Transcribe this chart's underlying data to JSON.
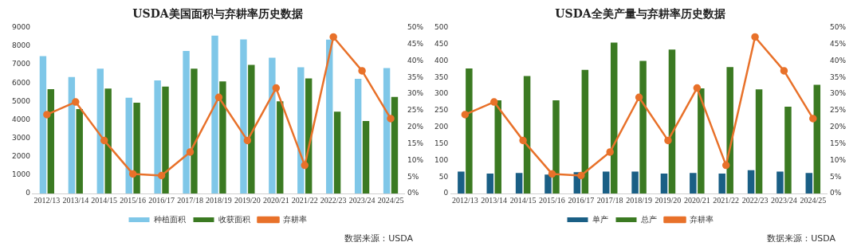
{
  "chart_data": [
    {
      "type": "bar",
      "title": "USDA美国面积与弃耕率历史数据",
      "categories": [
        "2012/13",
        "2013/14",
        "2014/15",
        "2015/16",
        "2016/17",
        "2017/18",
        "2018/19",
        "2019/20",
        "2020/21",
        "2021/22",
        "2022/23",
        "2023/24",
        "2024/25"
      ],
      "series": [
        {
          "name": "种植面积",
          "color": "#7fc7e8",
          "values": [
            7460,
            6320,
            6780,
            5200,
            6140,
            7740,
            8570,
            8360,
            7370,
            6850,
            8350,
            6230,
            6810
          ]
        },
        {
          "name": "收获面积",
          "color": "#3b7a22",
          "values": [
            5660,
            4580,
            5690,
            4930,
            5800,
            6780,
            6080,
            6980,
            5000,
            6250,
            4440,
            3930,
            5240
          ]
        },
        {
          "name": "弃耕率",
          "type": "line",
          "axis": "y2",
          "color": "#e8712a",
          "values": [
            23.8,
            27.6,
            16.0,
            5.9,
            5.4,
            12.5,
            29.0,
            16.0,
            31.8,
            8.5,
            47.2,
            37.0,
            22.6
          ]
        }
      ],
      "ylim": [
        0,
        9000
      ],
      "yticks": [
        0,
        1000,
        2000,
        3000,
        4000,
        5000,
        6000,
        7000,
        8000,
        9000
      ],
      "y2lim": [
        0,
        50
      ],
      "y2ticks": [
        {
          "value": 0,
          "label": "0%"
        },
        {
          "value": 5,
          "label": "5%"
        },
        {
          "value": 10,
          "label": "10%"
        },
        {
          "value": 15,
          "label": "15%"
        },
        {
          "value": 20,
          "label": "20%"
        },
        {
          "value": 25,
          "label": "25%"
        },
        {
          "value": 30,
          "label": "30%"
        },
        {
          "value": 35,
          "label": "35%"
        },
        {
          "value": 40,
          "label": "40%"
        },
        {
          "value": 45,
          "label": "45%"
        },
        {
          "value": 50,
          "label": "50%"
        }
      ],
      "marker": "circle",
      "legend": "bottom",
      "annotations": [
        "数据来源：USDA"
      ]
    },
    {
      "type": "bar",
      "title": "USDA全美产量与弃耕率历史数据",
      "categories": [
        "2012/13",
        "2013/14",
        "2014/15",
        "2015/16",
        "2016/17",
        "2017/18",
        "2018/19",
        "2019/20",
        "2020/21",
        "2021/22",
        "2022/23",
        "2023/24",
        "2024/25"
      ],
      "series": [
        {
          "name": "单产",
          "color": "#1a5f85",
          "values": [
            66,
            60,
            62,
            57,
            64,
            66,
            66,
            60,
            62,
            60,
            70,
            66,
            62
          ]
        },
        {
          "name": "总产",
          "color": "#3b7a22",
          "values": [
            377,
            281,
            354,
            281,
            373,
            455,
            400,
            434,
            317,
            381,
            314,
            262,
            328
          ]
        },
        {
          "name": "弃耕率",
          "type": "line",
          "axis": "y2",
          "color": "#e8712a",
          "values": [
            23.8,
            27.6,
            16.0,
            5.9,
            5.4,
            12.5,
            29.0,
            16.0,
            31.8,
            8.5,
            47.2,
            37.0,
            22.6
          ]
        }
      ],
      "ylim": [
        0,
        500
      ],
      "yticks": [
        0,
        50,
        100,
        150,
        200,
        250,
        300,
        350,
        400,
        450,
        500
      ],
      "y2lim": [
        0,
        50
      ],
      "y2ticks": [
        {
          "value": 0,
          "label": "0%"
        },
        {
          "value": 5,
          "label": "5%"
        },
        {
          "value": 10,
          "label": "10%"
        },
        {
          "value": 15,
          "label": "15%"
        },
        {
          "value": 20,
          "label": "20%"
        },
        {
          "value": 25,
          "label": "25%"
        },
        {
          "value": 30,
          "label": "30%"
        },
        {
          "value": 35,
          "label": "35%"
        },
        {
          "value": 40,
          "label": "40%"
        },
        {
          "value": 45,
          "label": "45%"
        },
        {
          "value": 50,
          "label": "50%"
        }
      ],
      "marker": "circle",
      "legend": "bottom",
      "annotations": [
        "数据来源：USDA"
      ]
    }
  ]
}
